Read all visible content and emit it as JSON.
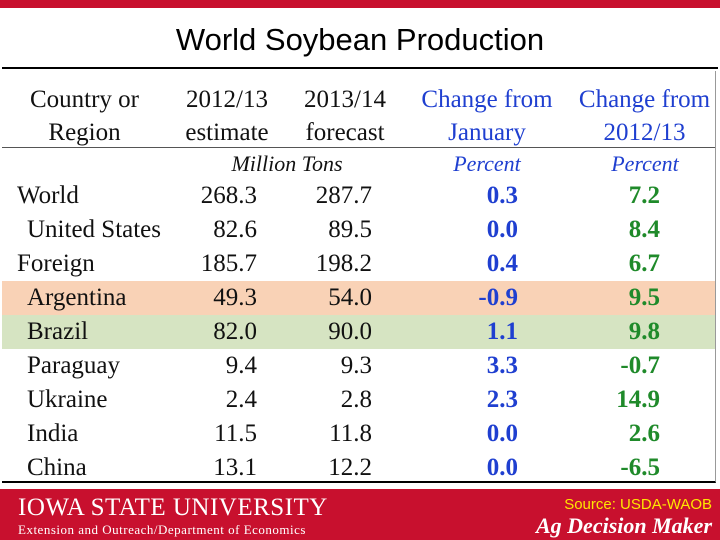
{
  "title": "World Soybean Production",
  "headers": {
    "country_l1": "Country or",
    "country_l2": "Region",
    "c2012_l1": "2012/13",
    "c2012_l2": "estimate",
    "c2013_l1": "2013/14",
    "c2013_l2": "forecast",
    "jan_l1": "Change from",
    "jan_l2": "January",
    "yr_l1": "Change from",
    "yr_l2": "2012/13"
  },
  "units": {
    "million_tons": "Million Tons",
    "percent_jan": "Percent",
    "percent_yr": "Percent"
  },
  "rows": [
    {
      "name": "World",
      "est_2012_13": "268.3",
      "fc_2013_14": "287.7",
      "chg_jan": "0.3",
      "chg_2012_13": "7.2"
    },
    {
      "name": "United States",
      "est_2012_13": "82.6",
      "fc_2013_14": "89.5",
      "chg_jan": "0.0",
      "chg_2012_13": "8.4"
    },
    {
      "name": "Foreign",
      "est_2012_13": "185.7",
      "fc_2013_14": "198.2",
      "chg_jan": "0.4",
      "chg_2012_13": "6.7"
    },
    {
      "name": "Argentina",
      "est_2012_13": "49.3",
      "fc_2013_14": "54.0",
      "chg_jan": "-0.9",
      "chg_2012_13": "9.5"
    },
    {
      "name": "Brazil",
      "est_2012_13": "82.0",
      "fc_2013_14": "90.0",
      "chg_jan": "1.1",
      "chg_2012_13": "9.8"
    },
    {
      "name": "Paraguay",
      "est_2012_13": "9.4",
      "fc_2013_14": "9.3",
      "chg_jan": "3.3",
      "chg_2012_13": "-0.7"
    },
    {
      "name": "Ukraine",
      "est_2012_13": "2.4",
      "fc_2013_14": "2.8",
      "chg_jan": "2.3",
      "chg_2012_13": "14.9"
    },
    {
      "name": "India",
      "est_2012_13": "11.5",
      "fc_2013_14": "11.8",
      "chg_jan": "0.0",
      "chg_2012_13": "2.6"
    },
    {
      "name": "China",
      "est_2012_13": "13.1",
      "fc_2013_14": "12.2",
      "chg_jan": "0.0",
      "chg_2012_13": "-6.5"
    }
  ],
  "highlights": {
    "Argentina": "#f9d2b6",
    "Brazil": "#d6e4c2"
  },
  "colors": {
    "brand_red": "#c8102e",
    "change_jan": "#1f3fd0",
    "change_yr": "#1f8a2a",
    "source_text": "#ffe600"
  },
  "footer": {
    "university": "IOWA STATE UNIVERSITY",
    "department": "Extension and Outreach/Department of Economics",
    "source": "Source: USDA-WAOB",
    "brand": "Ag Decision Maker"
  }
}
